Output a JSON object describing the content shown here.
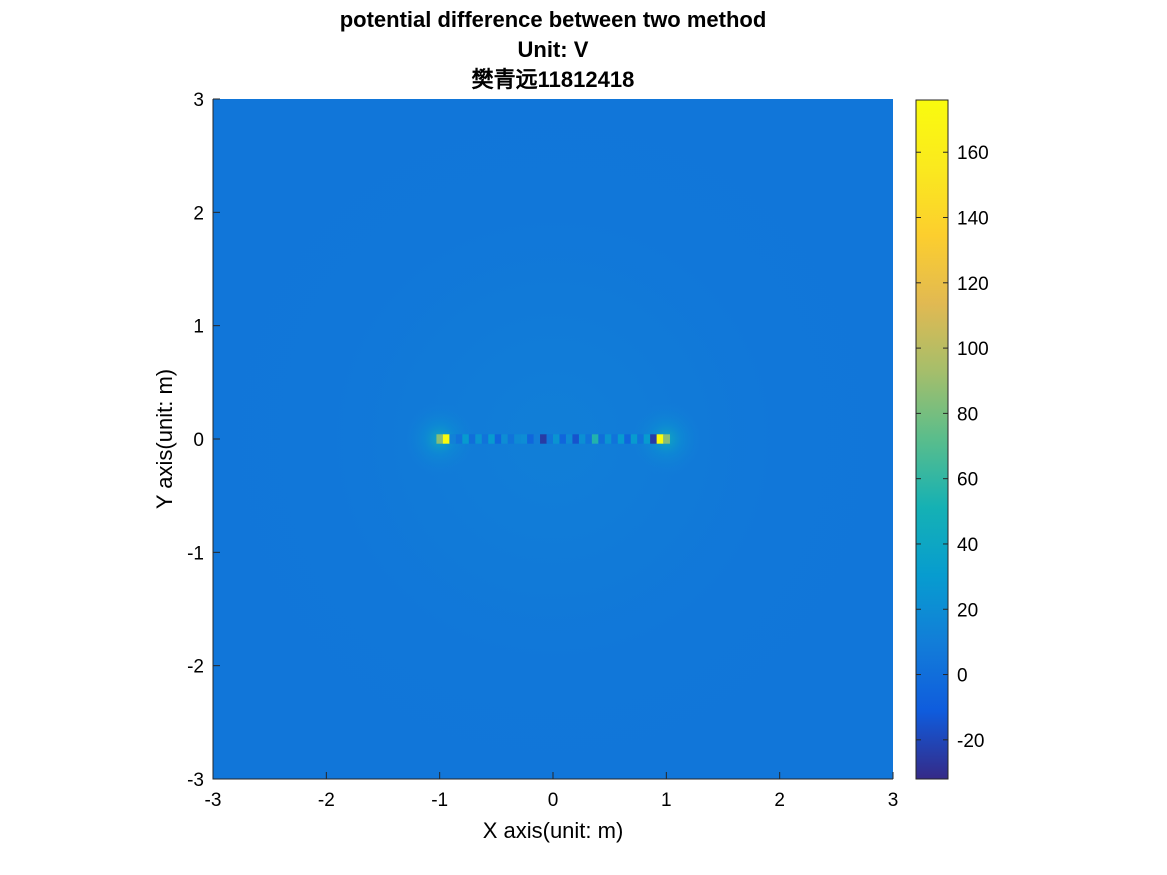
{
  "chart_data": {
    "type": "heatmap",
    "title_lines": [
      "potential difference between two method",
      "Unit: V",
      "樊青远11812418"
    ],
    "xlabel": "X axis(unit: m)",
    "ylabel": "Y axis(unit: m)",
    "xlim": [
      -3,
      3
    ],
    "ylim": [
      -3,
      3
    ],
    "x_ticks": [
      -3,
      -2,
      -1,
      0,
      1,
      2,
      3
    ],
    "y_ticks": [
      -3,
      -2,
      -1,
      0,
      1,
      2,
      3
    ],
    "x_tick_labels": [
      "-3",
      "-2",
      "-1",
      "0",
      "1",
      "2",
      "3"
    ],
    "y_tick_labels": [
      "-3",
      "-2",
      "-1",
      "0",
      "1",
      "2",
      "3"
    ],
    "colormap": "parula",
    "colorbar": {
      "range": [
        -32,
        176
      ],
      "ticks": [
        -20,
        0,
        20,
        40,
        60,
        80,
        100,
        120,
        140,
        160
      ],
      "tick_labels": [
        "-20",
        "0",
        "20",
        "40",
        "60",
        "80",
        "100",
        "120",
        "140",
        "160"
      ]
    },
    "background_value": 5,
    "line_segment": {
      "y": 0,
      "x_start": -1,
      "x_end": 1,
      "values": [
        85,
        176,
        12,
        3,
        30,
        0,
        25,
        3,
        30,
        -5,
        20,
        3,
        18,
        20,
        -5,
        10,
        -25,
        5,
        25,
        -5,
        18,
        -15,
        22,
        3,
        55,
        0,
        25,
        3,
        30,
        -5,
        30,
        3,
        30,
        -25,
        176,
        85
      ]
    },
    "grid": false,
    "legend": "none"
  }
}
